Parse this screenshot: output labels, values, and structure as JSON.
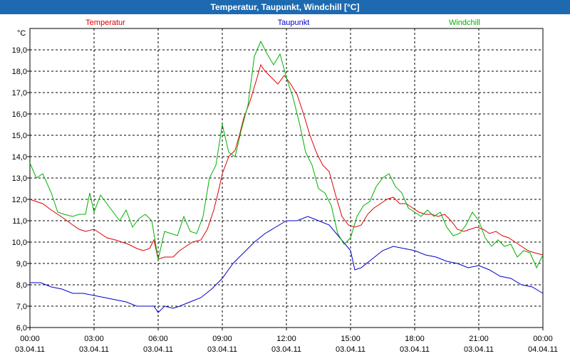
{
  "window": {
    "title": "Temperatur, Taupunkt, Windchill [°C]"
  },
  "chart_data": {
    "type": "line",
    "title": "Temperatur, Taupunkt, Windchill [°C]",
    "ylabel": "°C",
    "ylim": [
      6.0,
      20.0
    ],
    "yticks": [
      "6,0",
      "7,0",
      "8,0",
      "9,0",
      "10,0",
      "11,0",
      "12,0",
      "13,0",
      "14,0",
      "15,0",
      "16,0",
      "17,0",
      "18,0",
      "19,0"
    ],
    "xlim": [
      0,
      24
    ],
    "xticks": [
      {
        "time": "00:00",
        "date": "03.04.11"
      },
      {
        "time": "03:00",
        "date": "03.04.11"
      },
      {
        "time": "06:00",
        "date": "03.04.11"
      },
      {
        "time": "09:00",
        "date": "03.04.11"
      },
      {
        "time": "12:00",
        "date": "03.04.11"
      },
      {
        "time": "15:00",
        "date": "03.04.11"
      },
      {
        "time": "18:00",
        "date": "03.04.11"
      },
      {
        "time": "21:00",
        "date": "03.04.11"
      },
      {
        "time": "00:00",
        "date": "04.04.11"
      }
    ],
    "grid": true,
    "series": [
      {
        "name": "Temperatur",
        "color": "#dd0000",
        "points": [
          [
            0,
            12.0
          ],
          [
            0.3,
            11.9
          ],
          [
            0.6,
            11.8
          ],
          [
            1.0,
            11.5
          ],
          [
            1.3,
            11.3
          ],
          [
            1.6,
            11.1
          ],
          [
            2.0,
            10.8
          ],
          [
            2.3,
            10.6
          ],
          [
            2.6,
            10.5
          ],
          [
            3.0,
            10.6
          ],
          [
            3.3,
            10.4
          ],
          [
            3.6,
            10.2
          ],
          [
            4.0,
            10.1
          ],
          [
            4.3,
            10.0
          ],
          [
            4.6,
            9.9
          ],
          [
            5.0,
            9.7
          ],
          [
            5.3,
            9.6
          ],
          [
            5.6,
            9.7
          ],
          [
            5.8,
            10.1
          ],
          [
            6.0,
            9.2
          ],
          [
            6.3,
            9.3
          ],
          [
            6.7,
            9.3
          ],
          [
            7.0,
            9.6
          ],
          [
            7.3,
            9.8
          ],
          [
            7.6,
            10.0
          ],
          [
            8.0,
            10.1
          ],
          [
            8.3,
            10.6
          ],
          [
            8.6,
            11.5
          ],
          [
            8.8,
            12.3
          ],
          [
            9.0,
            13.2
          ],
          [
            9.3,
            14.0
          ],
          [
            9.6,
            14.3
          ],
          [
            9.8,
            15.0
          ],
          [
            10.0,
            15.8
          ],
          [
            10.3,
            16.6
          ],
          [
            10.6,
            17.6
          ],
          [
            10.8,
            18.3
          ],
          [
            11.0,
            18.0
          ],
          [
            11.3,
            17.7
          ],
          [
            11.6,
            17.4
          ],
          [
            11.9,
            17.8
          ],
          [
            12.2,
            17.4
          ],
          [
            12.5,
            16.9
          ],
          [
            12.8,
            16.0
          ],
          [
            13.1,
            15.0
          ],
          [
            13.4,
            14.2
          ],
          [
            13.7,
            13.6
          ],
          [
            14.0,
            13.3
          ],
          [
            14.3,
            12.2
          ],
          [
            14.6,
            11.2
          ],
          [
            14.9,
            10.8
          ],
          [
            15.2,
            10.7
          ],
          [
            15.5,
            10.8
          ],
          [
            15.8,
            11.3
          ],
          [
            16.1,
            11.6
          ],
          [
            16.4,
            11.8
          ],
          [
            16.7,
            12.0
          ],
          [
            17.0,
            12.1
          ],
          [
            17.3,
            11.8
          ],
          [
            17.6,
            11.8
          ],
          [
            17.9,
            11.6
          ],
          [
            18.2,
            11.4
          ],
          [
            18.5,
            11.3
          ],
          [
            18.8,
            11.3
          ],
          [
            19.1,
            11.2
          ],
          [
            19.4,
            11.3
          ],
          [
            19.7,
            11.0
          ],
          [
            20.0,
            10.6
          ],
          [
            20.3,
            10.5
          ],
          [
            20.6,
            10.6
          ],
          [
            20.9,
            10.7
          ],
          [
            21.2,
            10.6
          ],
          [
            21.5,
            10.4
          ],
          [
            21.8,
            10.5
          ],
          [
            22.1,
            10.3
          ],
          [
            22.4,
            10.2
          ],
          [
            22.7,
            10.0
          ],
          [
            23.0,
            9.8
          ],
          [
            23.3,
            9.6
          ],
          [
            23.6,
            9.5
          ],
          [
            24.0,
            9.4
          ]
        ]
      },
      {
        "name": "Taupunkt",
        "color": "#0000cc",
        "points": [
          [
            0,
            8.1
          ],
          [
            0.5,
            8.1
          ],
          [
            1.0,
            7.9
          ],
          [
            1.5,
            7.8
          ],
          [
            2.0,
            7.6
          ],
          [
            2.5,
            7.6
          ],
          [
            3.0,
            7.5
          ],
          [
            3.5,
            7.4
          ],
          [
            4.0,
            7.3
          ],
          [
            4.5,
            7.2
          ],
          [
            5.0,
            7.0
          ],
          [
            5.5,
            7.0
          ],
          [
            5.8,
            7.0
          ],
          [
            6.0,
            6.7
          ],
          [
            6.3,
            7.0
          ],
          [
            6.7,
            6.9
          ],
          [
            7.0,
            7.0
          ],
          [
            7.5,
            7.2
          ],
          [
            8.0,
            7.4
          ],
          [
            8.5,
            7.8
          ],
          [
            9.0,
            8.3
          ],
          [
            9.5,
            9.0
          ],
          [
            10.0,
            9.5
          ],
          [
            10.5,
            10.0
          ],
          [
            11.0,
            10.4
          ],
          [
            11.5,
            10.7
          ],
          [
            12.0,
            11.0
          ],
          [
            12.5,
            11.0
          ],
          [
            13.0,
            11.2
          ],
          [
            13.5,
            11.0
          ],
          [
            14.0,
            10.8
          ],
          [
            14.5,
            10.2
          ],
          [
            15.0,
            9.6
          ],
          [
            15.2,
            8.7
          ],
          [
            15.5,
            8.8
          ],
          [
            16.0,
            9.2
          ],
          [
            16.5,
            9.6
          ],
          [
            17.0,
            9.8
          ],
          [
            17.5,
            9.7
          ],
          [
            18.0,
            9.6
          ],
          [
            18.5,
            9.4
          ],
          [
            19.0,
            9.3
          ],
          [
            19.5,
            9.1
          ],
          [
            20.0,
            9.0
          ],
          [
            20.5,
            8.8
          ],
          [
            21.0,
            8.9
          ],
          [
            21.5,
            8.7
          ],
          [
            22.0,
            8.4
          ],
          [
            22.5,
            8.3
          ],
          [
            23.0,
            8.0
          ],
          [
            23.5,
            7.9
          ],
          [
            24.0,
            7.6
          ]
        ]
      },
      {
        "name": "Windchill",
        "color": "#00b000",
        "points": [
          [
            0,
            13.7
          ],
          [
            0.3,
            13.0
          ],
          [
            0.6,
            13.2
          ],
          [
            1.0,
            12.3
          ],
          [
            1.3,
            11.4
          ],
          [
            1.6,
            11.3
          ],
          [
            2.0,
            11.2
          ],
          [
            2.3,
            11.3
          ],
          [
            2.6,
            11.3
          ],
          [
            2.8,
            12.3
          ],
          [
            3.0,
            11.4
          ],
          [
            3.3,
            12.2
          ],
          [
            3.6,
            11.8
          ],
          [
            3.9,
            11.4
          ],
          [
            4.2,
            11.0
          ],
          [
            4.5,
            11.5
          ],
          [
            4.8,
            10.7
          ],
          [
            5.1,
            11.1
          ],
          [
            5.4,
            11.3
          ],
          [
            5.7,
            11.0
          ],
          [
            6.0,
            9.2
          ],
          [
            6.3,
            10.5
          ],
          [
            6.6,
            10.4
          ],
          [
            6.9,
            10.3
          ],
          [
            7.2,
            11.2
          ],
          [
            7.5,
            10.5
          ],
          [
            7.8,
            10.4
          ],
          [
            8.1,
            11.2
          ],
          [
            8.4,
            13.0
          ],
          [
            8.7,
            13.6
          ],
          [
            9.0,
            15.5
          ],
          [
            9.3,
            14.2
          ],
          [
            9.6,
            14.0
          ],
          [
            9.9,
            15.3
          ],
          [
            10.2,
            16.4
          ],
          [
            10.5,
            18.7
          ],
          [
            10.8,
            19.4
          ],
          [
            11.1,
            18.8
          ],
          [
            11.4,
            18.3
          ],
          [
            11.7,
            18.8
          ],
          [
            12.0,
            17.7
          ],
          [
            12.3,
            16.8
          ],
          [
            12.6,
            15.6
          ],
          [
            12.9,
            14.2
          ],
          [
            13.2,
            13.6
          ],
          [
            13.5,
            12.5
          ],
          [
            13.8,
            12.3
          ],
          [
            14.1,
            11.7
          ],
          [
            14.4,
            10.4
          ],
          [
            14.7,
            9.9
          ],
          [
            15.0,
            10.2
          ],
          [
            15.3,
            11.2
          ],
          [
            15.6,
            11.7
          ],
          [
            15.9,
            11.9
          ],
          [
            16.2,
            12.6
          ],
          [
            16.5,
            13.0
          ],
          [
            16.8,
            13.2
          ],
          [
            17.1,
            12.6
          ],
          [
            17.4,
            12.3
          ],
          [
            17.7,
            11.6
          ],
          [
            18.0,
            11.4
          ],
          [
            18.3,
            11.2
          ],
          [
            18.6,
            11.5
          ],
          [
            18.9,
            11.2
          ],
          [
            19.2,
            11.4
          ],
          [
            19.5,
            10.7
          ],
          [
            19.8,
            10.3
          ],
          [
            20.1,
            10.4
          ],
          [
            20.4,
            10.8
          ],
          [
            20.7,
            11.4
          ],
          [
            21.0,
            11.0
          ],
          [
            21.3,
            10.2
          ],
          [
            21.6,
            9.8
          ],
          [
            21.9,
            10.1
          ],
          [
            22.2,
            9.8
          ],
          [
            22.5,
            9.9
          ],
          [
            22.8,
            9.3
          ],
          [
            23.1,
            9.6
          ],
          [
            23.4,
            9.5
          ],
          [
            23.7,
            8.8
          ],
          [
            24.0,
            9.4
          ]
        ]
      }
    ]
  }
}
